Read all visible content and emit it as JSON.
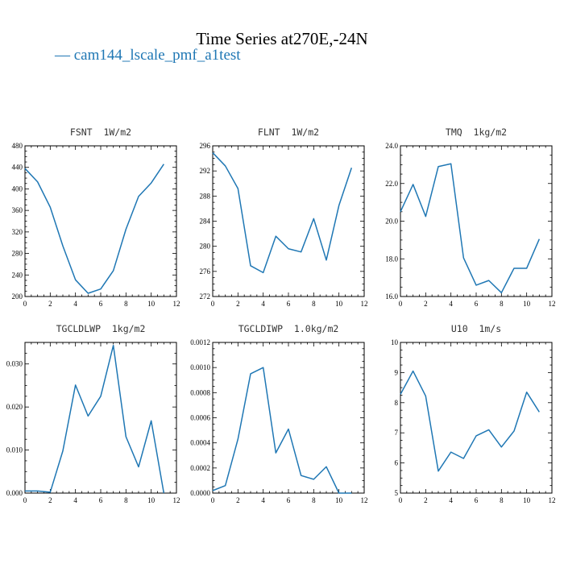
{
  "title": "Time Series at270E,-24N",
  "legend": {
    "label": "— cam144_lscale_pmf_a1test",
    "color": "#1f77b4"
  },
  "chart_data": [
    {
      "type": "line",
      "title": "FSNT 1W/m2",
      "x": [
        0,
        1,
        2,
        3,
        4,
        5,
        6,
        7,
        8,
        9,
        10,
        11
      ],
      "series": [
        {
          "values": [
            438,
            413,
            366,
            294,
            231,
            206,
            214,
            248,
            325,
            386,
            411,
            446
          ]
        }
      ],
      "xlim": [
        0,
        12
      ],
      "ylim": [
        200,
        480
      ],
      "xticks": [
        "0",
        "2",
        "4",
        "6",
        "8",
        "10",
        "12"
      ],
      "yticks": [
        "200",
        "240",
        "280",
        "320",
        "360",
        "400",
        "440",
        "480"
      ]
    },
    {
      "type": "line",
      "title": "FLNT 1W/m2",
      "x": [
        0,
        1,
        2,
        3,
        4,
        5,
        6,
        7,
        8,
        9,
        10,
        11
      ],
      "series": [
        {
          "values": [
            294.9,
            292.8,
            289.2,
            276.9,
            275.8,
            281.6,
            279.6,
            279.1,
            284.4,
            277.8,
            286.5,
            292.5
          ]
        }
      ],
      "xlim": [
        0,
        12
      ],
      "ylim": [
        272,
        296
      ],
      "xticks": [
        "0",
        "2",
        "4",
        "6",
        "8",
        "10",
        "12"
      ],
      "yticks": [
        "272",
        "276",
        "280",
        "284",
        "288",
        "292",
        "296"
      ]
    },
    {
      "type": "line",
      "title": "TMQ 1kg/m2",
      "x": [
        0,
        1,
        2,
        3,
        4,
        5,
        6,
        7,
        8,
        9,
        10,
        11
      ],
      "series": [
        {
          "values": [
            20.5,
            21.95,
            20.25,
            22.9,
            23.05,
            18.05,
            16.6,
            16.85,
            16.2,
            17.5,
            17.5,
            19.05
          ]
        }
      ],
      "xlim": [
        0,
        12
      ],
      "ylim": [
        16.0,
        24.0
      ],
      "xticks": [
        "0",
        "2",
        "4",
        "6",
        "8",
        "10",
        "12"
      ],
      "yticks": [
        "16.0",
        "18.0",
        "20.0",
        "22.0",
        "24.0"
      ]
    },
    {
      "type": "line",
      "title": "TGCLDLWP 1kg/m2",
      "x": [
        0,
        1,
        2,
        3,
        4,
        5,
        6,
        7,
        8,
        9,
        10,
        11
      ],
      "series": [
        {
          "values": [
            0.0005,
            0.0005,
            0.0002,
            0.0098,
            0.0251,
            0.0179,
            0.0225,
            0.0343,
            0.0131,
            0.0061,
            0.0168,
            0.0
          ]
        }
      ],
      "xlim": [
        0,
        12
      ],
      "ylim": [
        0.0,
        0.035
      ],
      "xticks": [
        "0",
        "2",
        "4",
        "6",
        "8",
        "10",
        "12"
      ],
      "yticks": [
        "0.000",
        "0.010",
        "0.020",
        "0.030"
      ]
    },
    {
      "type": "line",
      "title": "TGCLDIWP 1.0kg/m2",
      "x": [
        0,
        1,
        2,
        3,
        4,
        5,
        6,
        7,
        8,
        9,
        10,
        11
      ],
      "series": [
        {
          "values": [
            2e-05,
            6e-05,
            0.00043,
            0.00095,
            0.001,
            0.00032,
            0.00051,
            0.00014,
            0.00011,
            0.00021,
            0.0,
            0.0
          ]
        }
      ],
      "xlim": [
        0,
        12
      ],
      "ylim": [
        0.0,
        0.0012
      ],
      "xticks": [
        "0",
        "2",
        "4",
        "6",
        "8",
        "10",
        "12"
      ],
      "yticks": [
        "0.0000",
        "0.0002",
        "0.0004",
        "0.0006",
        "0.0008",
        "0.0010",
        "0.0012"
      ]
    },
    {
      "type": "line",
      "title": "U10 1m/s",
      "x": [
        0,
        1,
        2,
        3,
        4,
        5,
        6,
        7,
        8,
        9,
        10,
        11
      ],
      "series": [
        {
          "values": [
            8.28,
            9.05,
            8.22,
            5.73,
            6.36,
            6.15,
            6.9,
            7.1,
            6.53,
            7.06,
            8.35,
            7.69
          ]
        }
      ],
      "xlim": [
        0,
        12
      ],
      "ylim": [
        5,
        10
      ],
      "xticks": [
        "0",
        "2",
        "4",
        "6",
        "8",
        "10",
        "12"
      ],
      "yticks": [
        "5",
        "6",
        "7",
        "8",
        "9",
        "10"
      ]
    }
  ]
}
